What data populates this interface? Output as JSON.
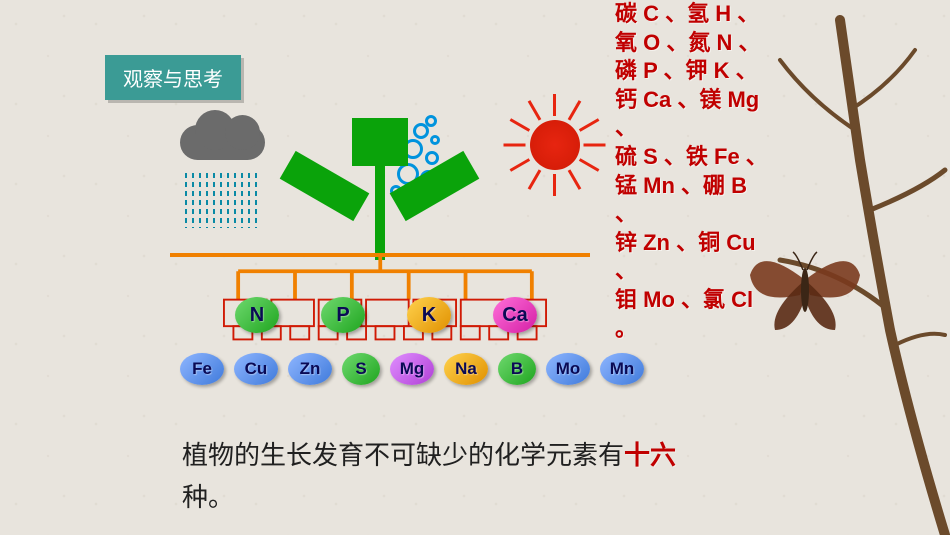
{
  "badge": {
    "label": "观察与思考",
    "bg": "#3b9b95",
    "fg": "#ffffff"
  },
  "diagram": {
    "sun_color": "#e72510",
    "cloud_color": "#6b6b6b",
    "rain_color": "#0a8aa5",
    "bubble_color": "#0093dd",
    "plant_color": "#0aa30a",
    "ground_color": "#f08000",
    "root_stroke": "#d01a05",
    "top_row": [
      {
        "sym": "N",
        "bg": "linear-gradient(135deg,#6fd96f,#1fa51f)"
      },
      {
        "sym": "P",
        "bg": "linear-gradient(135deg,#6fd96f,#1fa51f)"
      },
      {
        "sym": "K",
        "bg": "linear-gradient(135deg,#ffd24d,#e09000)"
      },
      {
        "sym": "Ca",
        "bg": "linear-gradient(135deg,#ff6fd9,#d41fa5)"
      }
    ],
    "bottom_row": [
      {
        "sym": "Fe",
        "bg": "linear-gradient(135deg,#8fb6ff,#3f7adb)"
      },
      {
        "sym": "Cu",
        "bg": "linear-gradient(135deg,#8fb6ff,#3f7adb)"
      },
      {
        "sym": "Zn",
        "bg": "linear-gradient(135deg,#8fb6ff,#3f7adb)"
      },
      {
        "sym": "S",
        "bg": "linear-gradient(135deg,#6fd96f,#1fa51f)"
      },
      {
        "sym": "Mg",
        "bg": "linear-gradient(135deg,#e08fff,#b03fd6)"
      },
      {
        "sym": "Na",
        "bg": "linear-gradient(135deg,#ffd24d,#e09000)"
      },
      {
        "sym": "B",
        "bg": "linear-gradient(135deg,#6fd96f,#1fa51f)"
      },
      {
        "sym": "Mo",
        "bg": "linear-gradient(135deg,#8fb6ff,#3f7adb)"
      },
      {
        "sym": "Mn",
        "bg": "linear-gradient(135deg,#8fb6ff,#3f7adb)"
      }
    ]
  },
  "element_list": {
    "color": "#c00000",
    "fontsize": 22,
    "pairs": [
      "碳 C 、氢 H 、",
      "氧 O 、氮 N 、",
      "磷 P 、钾 K 、",
      "钙 Ca 、镁 Mg 、",
      "硫 S 、铁 Fe 、",
      "锰 Mn 、硼 B 、",
      "锌 Zn 、铜 Cu 、",
      "钼 Mo 、氯 Cl 。"
    ]
  },
  "caption": {
    "prefix": "植物的生长发育不可缺少的化学元素有",
    "highlight": "十六",
    "suffix": "种。",
    "highlight_color": "#c00000"
  },
  "branch": {
    "stroke": "#6b4a2b",
    "butterfly_body": "#3b2616",
    "butterfly_wing": "#7a3a1e"
  }
}
